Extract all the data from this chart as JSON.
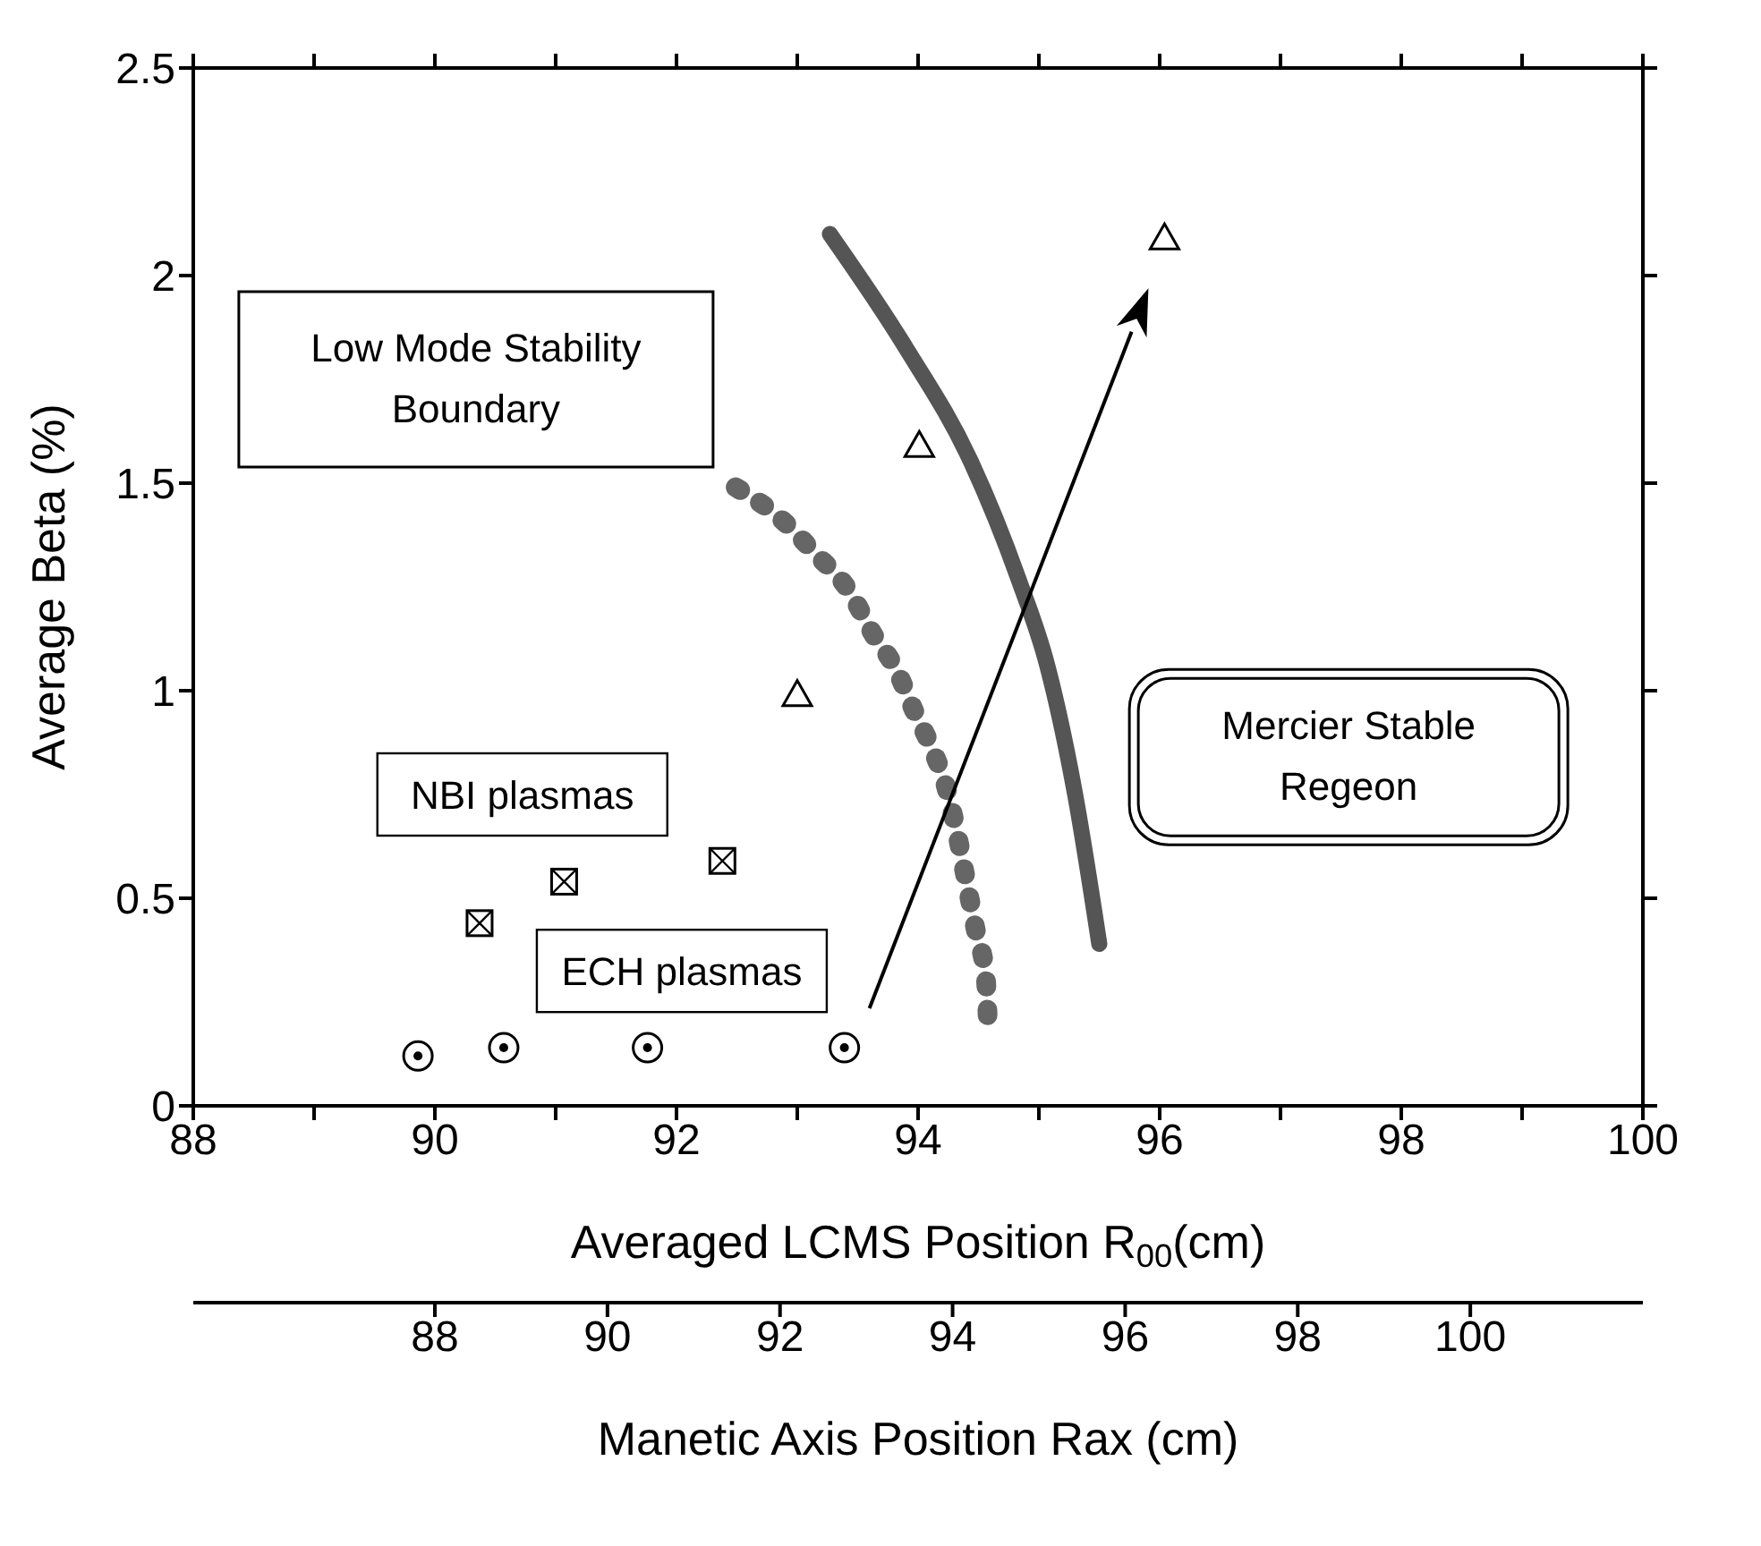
{
  "chart_data": {
    "type": "scatter",
    "xlabel": "Averaged LCMS Position R$_{00}$(cm)",
    "ylabel": "Average Beta (%)",
    "x2label": "Manetic Axis Position Rax (cm)",
    "xlim": [
      88,
      100
    ],
    "ylim": [
      0,
      2.5
    ],
    "xticks": [
      88,
      {
        "value": 89,
        "label": null
      },
      90,
      {
        "value": 91,
        "label": null
      },
      92,
      {
        "value": 93,
        "label": null
      },
      94,
      {
        "value": 95,
        "label": null
      },
      96,
      {
        "value": 97,
        "label": null
      },
      98,
      {
        "value": 99,
        "label": null
      },
      100
    ],
    "yticks": [
      0,
      0.5,
      1,
      1.5,
      2,
      2.5
    ],
    "x2lim": [
      85.2,
      102
    ],
    "x2ticks": [
      88,
      90,
      92,
      94,
      96,
      98,
      100
    ],
    "annotations": [
      "Low Mode Stability Boundary",
      "Mercier Stable Regeon"
    ],
    "series": [
      {
        "name": "ECH plasmas",
        "marker": "circle",
        "color": "#000000",
        "x": [
          89.86,
          90.57,
          91.76,
          93.39
        ],
        "values": [
          0.12,
          0.14,
          0.14,
          0.14
        ]
      },
      {
        "name": "NBI plasmas",
        "marker": "square",
        "color": "#000000",
        "x": [
          90.37,
          91.07,
          92.38
        ],
        "values": [
          0.44,
          0.54,
          0.59
        ]
      },
      {
        "marker": "triangle",
        "color": "#000000",
        "x": [
          93.0,
          94.01,
          96.04
        ],
        "values": [
          0.99,
          1.59,
          2.09
        ]
      },
      {
        "type": "line",
        "line_style": "dashed",
        "marker": "none",
        "color": "#666666",
        "x": [
          92.49,
          92.84,
          93.15,
          93.43,
          93.62,
          93.82,
          93.97,
          94.13,
          94.23,
          94.32,
          94.4,
          94.48,
          94.56,
          94.58
        ],
        "values": [
          1.49,
          1.42,
          1.33,
          1.24,
          1.14,
          1.05,
          0.95,
          0.85,
          0.77,
          0.66,
          0.54,
          0.42,
          0.31,
          0.18
        ]
      },
      {
        "type": "line",
        "line_style": "solid",
        "marker": "none",
        "color": "#555555",
        "x": [
          93.27,
          93.89,
          94.44,
          94.83,
          95.07,
          95.3,
          95.5
        ],
        "values": [
          2.1,
          1.83,
          1.55,
          1.27,
          1.06,
          0.75,
          0.39
        ]
      }
    ]
  }
}
